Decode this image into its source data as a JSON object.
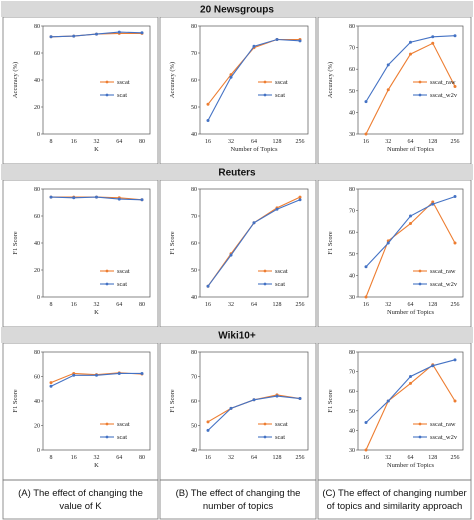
{
  "colors": {
    "orange": "#ed7d31",
    "blue": "#4472c4",
    "band": "#d9d9d9"
  },
  "sections": [
    {
      "title": "20 Newsgroups"
    },
    {
      "title": "Reuters"
    },
    {
      "title": "Wiki10+"
    }
  ],
  "captions": [
    [
      "(A) The effect of changing the",
      "value of K"
    ],
    [
      "(B) The effect of changing the",
      "number of topics"
    ],
    [
      "(C) The effect of changing number",
      "of topics and similarity approach"
    ]
  ],
  "chart_data": [
    {
      "type": "line",
      "section": "20 Newsgroups",
      "column": "A",
      "x": [
        "8",
        "16",
        "32",
        "64",
        "80"
      ],
      "xlabel": "K",
      "ylabel": "Accuracy (%)",
      "yticks": [
        0,
        20,
        40,
        60,
        80
      ],
      "ylim": [
        0,
        80
      ],
      "legend": "right-middle",
      "series": [
        {
          "name": "sscat",
          "color": "orange",
          "values": [
            72,
            72.5,
            74,
            74.5,
            74.5
          ]
        },
        {
          "name": "scat",
          "color": "blue",
          "values": [
            72,
            72.5,
            74,
            75.5,
            75
          ]
        }
      ]
    },
    {
      "type": "line",
      "section": "20 Newsgroups",
      "column": "B",
      "x": [
        "16",
        "32",
        "64",
        "128",
        "256"
      ],
      "xlabel": "Number of Topics",
      "ylabel": "Accuracy (%)",
      "yticks": [
        40,
        50,
        60,
        70,
        80
      ],
      "ylim": [
        40,
        80
      ],
      "legend": "right-middle",
      "series": [
        {
          "name": "sscat",
          "color": "orange",
          "values": [
            51,
            62,
            72,
            75,
            75
          ]
        },
        {
          "name": "scat",
          "color": "blue",
          "values": [
            45,
            61,
            72.5,
            75,
            74.5
          ]
        }
      ]
    },
    {
      "type": "line",
      "section": "20 Newsgroups",
      "column": "C",
      "x": [
        "16",
        "32",
        "64",
        "128",
        "256"
      ],
      "xlabel": "Number of Topics",
      "ylabel": "Accuracy (%)",
      "yticks": [
        30,
        40,
        50,
        60,
        70,
        80
      ],
      "ylim": [
        30,
        80
      ],
      "legend": "right-middle",
      "series": [
        {
          "name": "sscat_raw",
          "color": "orange",
          "values": [
            30,
            50.5,
            67,
            72,
            52
          ]
        },
        {
          "name": "sscat_w2v",
          "color": "blue",
          "values": [
            45,
            62,
            72.5,
            75,
            75.5
          ]
        }
      ]
    },
    {
      "type": "line",
      "section": "Reuters",
      "column": "A",
      "x": [
        "8",
        "16",
        "32",
        "64",
        "80"
      ],
      "xlabel": "K",
      "ylabel": "F1 Score",
      "yticks": [
        0,
        20,
        40,
        60,
        80
      ],
      "ylim": [
        0,
        80
      ],
      "legend": "bottom-right",
      "series": [
        {
          "name": "sscat",
          "color": "orange",
          "values": [
            74,
            74,
            74,
            73.5,
            72
          ]
        },
        {
          "name": "scat",
          "color": "blue",
          "values": [
            74,
            73.5,
            74,
            72.5,
            72
          ]
        }
      ]
    },
    {
      "type": "line",
      "section": "Reuters",
      "column": "B",
      "x": [
        "16",
        "32",
        "64",
        "128",
        "256"
      ],
      "xlabel": "",
      "ylabel": "F1 Score",
      "yticks": [
        40,
        50,
        60,
        70,
        80
      ],
      "ylim": [
        40,
        80
      ],
      "legend": "bottom-right",
      "series": [
        {
          "name": "sscat",
          "color": "orange",
          "values": [
            44,
            56,
            67.5,
            73,
            77
          ]
        },
        {
          "name": "scat",
          "color": "blue",
          "values": [
            44,
            55.5,
            67.5,
            72.5,
            76
          ]
        }
      ]
    },
    {
      "type": "line",
      "section": "Reuters",
      "column": "C",
      "x": [
        "16",
        "32",
        "64",
        "128",
        "256"
      ],
      "xlabel": "Number of Topics",
      "ylabel": "F1 Score",
      "yticks": [
        30,
        40,
        50,
        60,
        70,
        80
      ],
      "ylim": [
        30,
        80
      ],
      "legend": "bottom-right",
      "series": [
        {
          "name": "sscat_raw",
          "color": "orange",
          "values": [
            30,
            56,
            64,
            74,
            55
          ]
        },
        {
          "name": "sscat_w2v",
          "color": "blue",
          "values": [
            44,
            55,
            67.5,
            73,
            76.5
          ]
        }
      ]
    },
    {
      "type": "line",
      "section": "Wiki10+",
      "column": "A",
      "x": [
        "8",
        "16",
        "32",
        "64",
        "80"
      ],
      "xlabel": "K",
      "ylabel": "F1 Score",
      "yticks": [
        0,
        20,
        40,
        60,
        80
      ],
      "ylim": [
        0,
        80
      ],
      "legend": "bottom-right",
      "series": [
        {
          "name": "sscat",
          "color": "orange",
          "values": [
            55,
            62.5,
            61.5,
            63,
            62
          ]
        },
        {
          "name": "scat",
          "color": "blue",
          "values": [
            52,
            61,
            61,
            62.5,
            62.5
          ]
        }
      ]
    },
    {
      "type": "line",
      "section": "Wiki10+",
      "column": "B",
      "x": [
        "16",
        "32",
        "64",
        "128",
        "256"
      ],
      "xlabel": "",
      "ylabel": "F1 Score",
      "yticks": [
        40,
        50,
        60,
        70,
        80
      ],
      "ylim": [
        40,
        80
      ],
      "legend": "bottom-right",
      "series": [
        {
          "name": "sscat",
          "color": "orange",
          "values": [
            51.5,
            57,
            60.5,
            62.5,
            61
          ]
        },
        {
          "name": "scat",
          "color": "blue",
          "values": [
            48,
            57,
            60.5,
            62,
            61
          ]
        }
      ]
    },
    {
      "type": "line",
      "section": "Wiki10+",
      "column": "C",
      "x": [
        "16",
        "32",
        "64",
        "128",
        "256"
      ],
      "xlabel": "Number of Topics",
      "ylabel": "F1 Score",
      "yticks": [
        30,
        40,
        50,
        60,
        70,
        80
      ],
      "ylim": [
        30,
        80
      ],
      "legend": "bottom-right",
      "series": [
        {
          "name": "sscat_raw",
          "color": "orange",
          "values": [
            30,
            55,
            64,
            73.5,
            55
          ]
        },
        {
          "name": "sscat_w2v",
          "color": "blue",
          "values": [
            44,
            55,
            67.5,
            73,
            76
          ]
        }
      ]
    }
  ]
}
